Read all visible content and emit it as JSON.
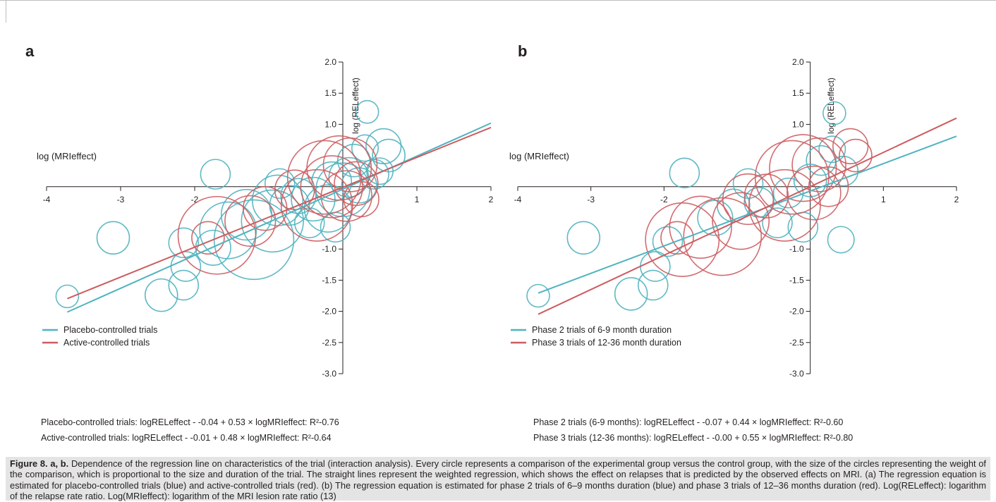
{
  "caption": {
    "label": "Figure 8. a, b.",
    "text": "Dependence of the regression line on characteristics of the trial (interaction analysis). Every circle represents a comparison of the experimental group versus the control group, with the size of the circles representing the weight of the comparison, which is proportional to the size and duration of the trial. The straight lines represent the weighted regression, which shows the effect on relapses that is predicted by the observed effects on MRI. (a) The regression equation is estimated for placebo-controlled trials (blue) and active-controlled trials (red). (b) The regression equation is estimated for phase 2 trials of 6–9 months duration (blue) and phase 3 trials of 12–36 months duration (red). Log(RELeffect): logarithm of the relapse rate ratio. Log(MRIeffect): logarithm of the MRI lesion rate ratio (13)"
  },
  "colors": {
    "blue": "#4fb3bf",
    "red": "#cd5c60",
    "axis": "#231f20"
  },
  "chart_data": [
    {
      "panel": "a",
      "type": "scatter",
      "xlabel": "log (MRIeffect)",
      "ylabel": "log (RELeffect)",
      "xlim": [
        -4,
        2
      ],
      "ylim": [
        -3.0,
        2.0
      ],
      "x_ticks": [
        -4,
        -3,
        -2,
        1,
        2
      ],
      "x_tick_labels": [
        "-4",
        "-3",
        "-2",
        "1",
        "2"
      ],
      "y_ticks": [
        2.0,
        1.5,
        1.0,
        -1.0,
        -1.5,
        -2.0,
        -2.5,
        -3.0
      ],
      "y_tick_labels": [
        "2.0",
        "1.5",
        "1.0",
        "-1.0",
        "-1.5",
        "-2.0",
        "-2.5",
        "-3.0"
      ],
      "legend": {
        "position": "bottom-left",
        "entries": [
          "Placebo-controlled trials",
          "Active-controlled trials"
        ]
      },
      "equations": [
        "Placebo-controlled trials: logRELeffect - -0.04 + 0.53 × logMRIeffect: R²-0.76",
        "Active-controlled trials: logRELeffect - -0.01 + 0.48 × logMRIeffect: R²-0.64"
      ],
      "series": [
        {
          "name": "Placebo-controlled trials",
          "color": "blue",
          "regression": {
            "intercept": -0.04,
            "slope": 0.53,
            "x_range": [
              -3.72,
              2
            ]
          },
          "points": [
            {
              "x": -3.72,
              "y": -1.76,
              "w": 2
            },
            {
              "x": -3.1,
              "y": -0.82,
              "w": 5
            },
            {
              "x": -2.45,
              "y": -1.74,
              "w": 5
            },
            {
              "x": -2.15,
              "y": -0.9,
              "w": 4
            },
            {
              "x": -2.15,
              "y": -1.58,
              "w": 4
            },
            {
              "x": -2.12,
              "y": -1.28,
              "w": 4
            },
            {
              "x": -1.72,
              "y": 0.2,
              "w": 4
            },
            {
              "x": -1.75,
              "y": -0.98,
              "w": 6
            },
            {
              "x": -1.55,
              "y": -0.7,
              "w": 18
            },
            {
              "x": -1.3,
              "y": -0.45,
              "w": 14
            },
            {
              "x": -1.2,
              "y": -0.85,
              "w": 38
            },
            {
              "x": -0.95,
              "y": -0.55,
              "w": 22
            },
            {
              "x": -0.88,
              "y": -0.22,
              "w": 14
            },
            {
              "x": -0.72,
              "y": -0.3,
              "w": 8
            },
            {
              "x": -0.85,
              "y": 0.05,
              "w": 4
            },
            {
              "x": -0.6,
              "y": -0.15,
              "w": 6
            },
            {
              "x": -0.45,
              "y": -0.58,
              "w": 4
            },
            {
              "x": -0.4,
              "y": -0.2,
              "w": 10
            },
            {
              "x": -0.2,
              "y": -0.35,
              "w": 12
            },
            {
              "x": -0.15,
              "y": 0.08,
              "w": 8
            },
            {
              "x": -0.1,
              "y": -0.65,
              "w": 4
            },
            {
              "x": 0.0,
              "y": -0.05,
              "w": 16
            },
            {
              "x": 0.08,
              "y": 0.15,
              "w": 8
            },
            {
              "x": 0.15,
              "y": 0.42,
              "w": 5
            },
            {
              "x": 0.22,
              "y": 0.02,
              "w": 6
            },
            {
              "x": 0.3,
              "y": 0.62,
              "w": 3
            },
            {
              "x": 0.42,
              "y": 0.2,
              "w": 4
            },
            {
              "x": 0.5,
              "y": 0.25,
              "w": 3
            },
            {
              "x": 0.55,
              "y": 0.65,
              "w": 6
            },
            {
              "x": 0.62,
              "y": 0.5,
              "w": 5
            },
            {
              "x": 0.33,
              "y": 1.2,
              "w": 2
            }
          ]
        },
        {
          "name": "Active-controlled trials",
          "color": "red",
          "regression": {
            "intercept": -0.01,
            "slope": 0.48,
            "x_range": [
              -3.72,
              2
            ]
          },
          "points": [
            {
              "x": -1.82,
              "y": -0.82,
              "w": 5
            },
            {
              "x": -1.7,
              "y": -0.78,
              "w": 36
            },
            {
              "x": -1.25,
              "y": -0.55,
              "w": 14
            },
            {
              "x": -1.05,
              "y": -0.35,
              "w": 10
            },
            {
              "x": -0.65,
              "y": -0.05,
              "w": 8
            },
            {
              "x": -0.35,
              "y": -0.3,
              "w": 30
            },
            {
              "x": -0.25,
              "y": 0.15,
              "w": 32
            },
            {
              "x": -0.15,
              "y": 0.0,
              "w": 22
            },
            {
              "x": -0.05,
              "y": 0.3,
              "w": 24
            },
            {
              "x": 0.05,
              "y": -0.15,
              "w": 14
            },
            {
              "x": 0.1,
              "y": 0.35,
              "w": 16
            },
            {
              "x": 0.18,
              "y": 0.05,
              "w": 10
            },
            {
              "x": 0.25,
              "y": -0.2,
              "w": 6
            }
          ]
        }
      ]
    },
    {
      "panel": "b",
      "type": "scatter",
      "xlabel": "log (MRIeffect)",
      "ylabel": "log (RELeffect)",
      "xlim": [
        -4,
        2
      ],
      "ylim": [
        -3.0,
        2.0
      ],
      "x_ticks": [
        -4,
        -3,
        -2,
        1,
        2
      ],
      "x_tick_labels": [
        "-4",
        "-3",
        "-2",
        "1",
        "2"
      ],
      "y_ticks": [
        2.0,
        1.5,
        1.0,
        -1.0,
        -1.5,
        -2.0,
        -2.5,
        -3.0
      ],
      "y_tick_labels": [
        "2.0",
        "1.5",
        "1.0",
        "-1.0",
        "-1.5",
        "-2.0",
        "-2.5",
        "-3.0"
      ],
      "legend": {
        "position": "bottom-left",
        "entries": [
          "Phase 2 trials of 6-9 month duration",
          "Phase 3 trials of 12-36 month duration"
        ]
      },
      "equations": [
        "Phase 2 trials (6-9 months): logRELeffect - -0.07 + 0.44 × logMRIeffect: R²-0.60",
        "Phase 3 trials (12-36 months): logRELeffect - -0.00 + 0.55 × logMRIeffect: R²-0.80"
      ],
      "series": [
        {
          "name": "Phase 2 trials of 6-9 month duration",
          "color": "blue",
          "regression": {
            "intercept": -0.07,
            "slope": 0.44,
            "x_range": [
              -3.72,
              2
            ]
          },
          "points": [
            {
              "x": -3.72,
              "y": -1.75,
              "w": 2
            },
            {
              "x": -3.1,
              "y": -0.82,
              "w": 5
            },
            {
              "x": -2.45,
              "y": -1.72,
              "w": 5
            },
            {
              "x": -2.15,
              "y": -1.58,
              "w": 4
            },
            {
              "x": -2.12,
              "y": -1.28,
              "w": 4
            },
            {
              "x": -1.95,
              "y": -0.88,
              "w": 4
            },
            {
              "x": -1.72,
              "y": 0.22,
              "w": 4
            },
            {
              "x": -1.3,
              "y": -0.5,
              "w": 6
            },
            {
              "x": -1.05,
              "y": -0.3,
              "w": 5
            },
            {
              "x": -0.85,
              "y": 0.05,
              "w": 4
            },
            {
              "x": -0.7,
              "y": -0.25,
              "w": 4
            },
            {
              "x": -0.45,
              "y": -0.58,
              "w": 4
            },
            {
              "x": -0.3,
              "y": -0.1,
              "w": 4
            },
            {
              "x": -0.1,
              "y": -0.65,
              "w": 4
            },
            {
              "x": 0.0,
              "y": 0.1,
              "w": 5
            },
            {
              "x": 0.15,
              "y": 0.42,
              "w": 4
            },
            {
              "x": 0.3,
              "y": 0.6,
              "w": 3
            },
            {
              "x": 0.42,
              "y": -0.85,
              "w": 3
            },
            {
              "x": 0.45,
              "y": 0.25,
              "w": 4
            },
            {
              "x": 0.33,
              "y": 1.18,
              "w": 2
            }
          ]
        },
        {
          "name": "Phase 3 trials of 12-36 month duration",
          "color": "red",
          "regression": {
            "intercept": 0.0,
            "slope": 0.55,
            "x_range": [
              -3.72,
              2
            ]
          },
          "points": [
            {
              "x": -1.82,
              "y": -0.82,
              "w": 5
            },
            {
              "x": -1.75,
              "y": -0.85,
              "w": 32
            },
            {
              "x": -1.5,
              "y": -0.65,
              "w": 22
            },
            {
              "x": -1.2,
              "y": -0.8,
              "w": 36
            },
            {
              "x": -0.95,
              "y": -0.55,
              "w": 18
            },
            {
              "x": -0.85,
              "y": -0.2,
              "w": 14
            },
            {
              "x": -0.6,
              "y": -0.15,
              "w": 10
            },
            {
              "x": -0.35,
              "y": -0.3,
              "w": 30
            },
            {
              "x": -0.25,
              "y": 0.15,
              "w": 32
            },
            {
              "x": -0.1,
              "y": 0.3,
              "w": 26
            },
            {
              "x": 0.05,
              "y": -0.1,
              "w": 16
            },
            {
              "x": 0.12,
              "y": 0.35,
              "w": 16
            },
            {
              "x": 0.25,
              "y": 0.0,
              "w": 8
            },
            {
              "x": 0.55,
              "y": 0.65,
              "w": 6
            },
            {
              "x": 0.62,
              "y": 0.5,
              "w": 5
            }
          ]
        }
      ]
    }
  ]
}
